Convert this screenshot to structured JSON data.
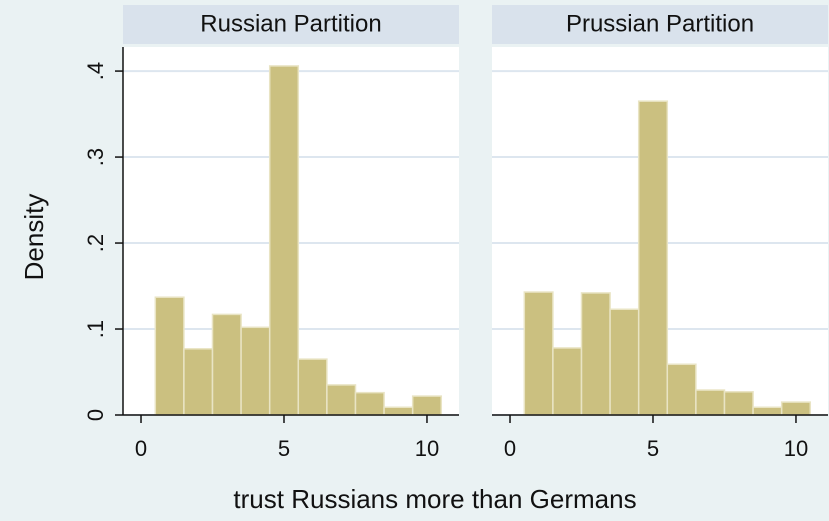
{
  "ylabel": "Density",
  "xlabel": "trust Russians more than Germans",
  "chart_data": [
    {
      "type": "histogram",
      "title": "Russian Partition",
      "bins": [
        0.5,
        1.5,
        2.5,
        3.5,
        4.5,
        5.5,
        6.5,
        7.5,
        8.5,
        9.5,
        10.5
      ],
      "values": [
        0.137,
        0.077,
        0.117,
        0.102,
        0.406,
        0.065,
        0.035,
        0.026,
        0.009,
        0.022
      ],
      "color": "#cbc080",
      "xlim": [
        -0.63,
        11.12
      ],
      "xticks": [
        0,
        5,
        10
      ],
      "ylim": [
        0,
        0.428
      ],
      "yticks": [
        0,
        {
          "value": 0.1,
          "label": ".1"
        },
        {
          "value": 0.2,
          "label": ".2"
        },
        {
          "value": 0.3,
          "label": ".3"
        },
        {
          "value": 0.4,
          "label": ".4"
        }
      ],
      "grid": true
    },
    {
      "type": "histogram",
      "title": "Prussian Partition",
      "bins": [
        0.5,
        1.5,
        2.5,
        3.5,
        4.5,
        5.5,
        6.5,
        7.5,
        8.5,
        9.5,
        10.5
      ],
      "values": [
        0.143,
        0.078,
        0.142,
        0.123,
        0.365,
        0.059,
        0.029,
        0.027,
        0.009,
        0.015
      ],
      "color": "#cbc080",
      "xlim": [
        -0.63,
        11.12
      ],
      "xticks": [
        0,
        5,
        10
      ],
      "ylim": [
        0,
        0.428
      ],
      "yticks": [
        0,
        0.1,
        0.2,
        0.3,
        0.4
      ],
      "grid": true
    }
  ]
}
